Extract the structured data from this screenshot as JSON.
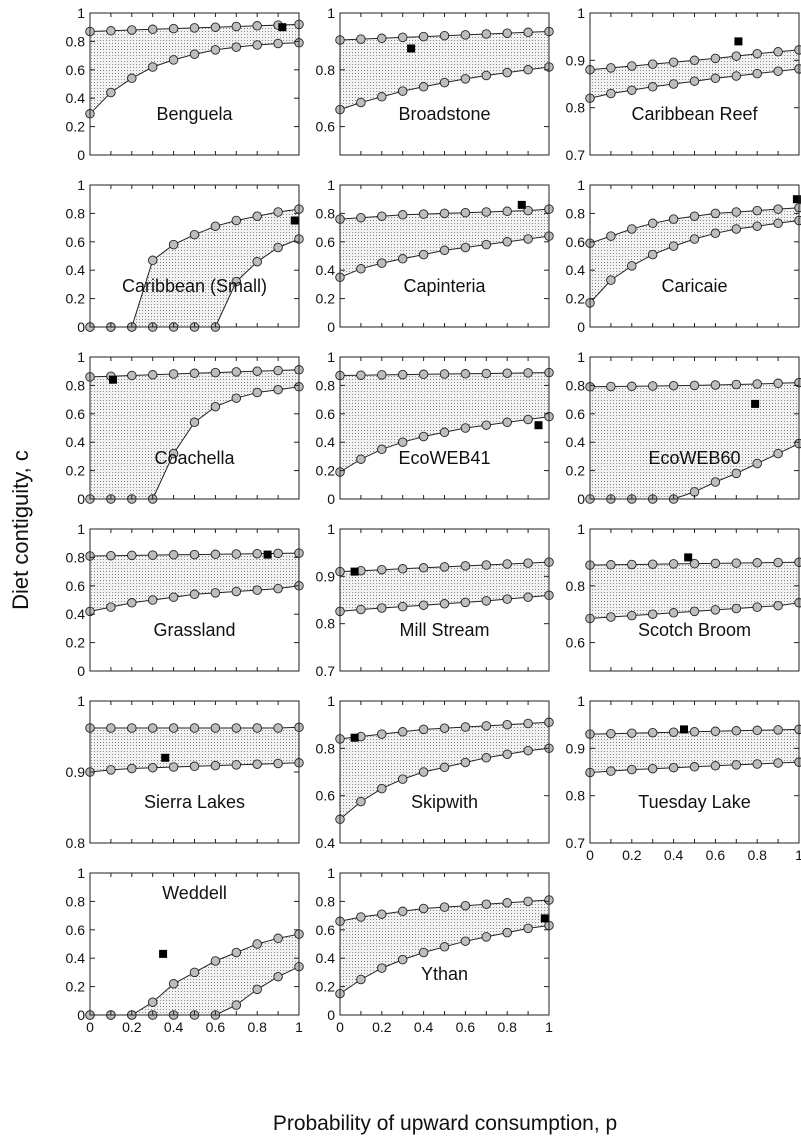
{
  "figure": {
    "ylabel": "Diet contiguity, c",
    "xlabel": "Probability of upward consumption, p"
  },
  "chart_data": [
    {
      "type": "area",
      "title": "Benguela",
      "ylim": [
        0,
        1
      ],
      "yticks": [
        "0",
        "0.2",
        "0.4",
        "0.6",
        "0.8",
        "1"
      ],
      "xlim": [
        0,
        1
      ],
      "x": [
        0,
        0.1,
        0.2,
        0.3,
        0.4,
        0.5,
        0.6,
        0.7,
        0.8,
        0.9,
        1
      ],
      "upper": [
        0.87,
        0.875,
        0.88,
        0.885,
        0.89,
        0.895,
        0.9,
        0.905,
        0.91,
        0.915,
        0.92
      ],
      "lower": [
        0.29,
        0.44,
        0.54,
        0.62,
        0.67,
        0.71,
        0.74,
        0.76,
        0.775,
        0.785,
        0.79
      ],
      "observed": [
        0.92,
        0.9
      ]
    },
    {
      "type": "area",
      "title": "Broadstone",
      "ylim": [
        0.5,
        1
      ],
      "yticks": [
        "0.6",
        "0.8",
        "1"
      ],
      "xlim": [
        0,
        1
      ],
      "x": [
        0,
        0.1,
        0.2,
        0.3,
        0.4,
        0.5,
        0.6,
        0.7,
        0.8,
        0.9,
        1
      ],
      "upper": [
        0.905,
        0.908,
        0.911,
        0.914,
        0.917,
        0.92,
        0.923,
        0.926,
        0.929,
        0.932,
        0.935
      ],
      "lower": [
        0.66,
        0.685,
        0.705,
        0.725,
        0.74,
        0.755,
        0.768,
        0.78,
        0.79,
        0.8,
        0.81
      ],
      "observed": [
        0.34,
        0.875
      ]
    },
    {
      "type": "area",
      "title": "Caribbean Reef",
      "ylim": [
        0.7,
        1
      ],
      "yticks": [
        "0.7",
        "0.8",
        "0.9",
        "1"
      ],
      "xlim": [
        0,
        1
      ],
      "x": [
        0,
        0.1,
        0.2,
        0.3,
        0.4,
        0.5,
        0.6,
        0.7,
        0.8,
        0.9,
        1
      ],
      "upper": [
        0.88,
        0.884,
        0.888,
        0.892,
        0.896,
        0.9,
        0.904,
        0.909,
        0.914,
        0.918,
        0.922
      ],
      "lower": [
        0.82,
        0.83,
        0.837,
        0.844,
        0.85,
        0.856,
        0.862,
        0.867,
        0.872,
        0.877,
        0.882
      ],
      "observed": [
        0.71,
        0.94
      ]
    },
    {
      "type": "area",
      "title": "Caribbean (Small)",
      "ylim": [
        0,
        1
      ],
      "yticks": [
        "0",
        "0.2",
        "0.4",
        "0.6",
        "0.8",
        "1"
      ],
      "xlim": [
        0,
        1
      ],
      "x": [
        0,
        0.1,
        0.2,
        0.3,
        0.4,
        0.5,
        0.6,
        0.7,
        0.8,
        0.9,
        1
      ],
      "upper": [
        0,
        0,
        0,
        0.47,
        0.58,
        0.65,
        0.71,
        0.75,
        0.78,
        0.81,
        0.83
      ],
      "lower": [
        0,
        0,
        0,
        0,
        0,
        0,
        0,
        0.32,
        0.46,
        0.56,
        0.62
      ],
      "observed": [
        0.98,
        0.75
      ]
    },
    {
      "type": "area",
      "title": "Capinteria",
      "ylim": [
        0,
        1
      ],
      "yticks": [
        "0",
        "0.2",
        "0.4",
        "0.6",
        "0.8",
        "1"
      ],
      "xlim": [
        0,
        1
      ],
      "x": [
        0,
        0.1,
        0.2,
        0.3,
        0.4,
        0.5,
        0.6,
        0.7,
        0.8,
        0.9,
        1
      ],
      "upper": [
        0.76,
        0.77,
        0.78,
        0.79,
        0.795,
        0.8,
        0.805,
        0.81,
        0.815,
        0.82,
        0.83
      ],
      "lower": [
        0.35,
        0.41,
        0.45,
        0.48,
        0.51,
        0.54,
        0.56,
        0.58,
        0.6,
        0.62,
        0.64
      ],
      "observed": [
        0.87,
        0.86
      ]
    },
    {
      "type": "area",
      "title": "Caricaie",
      "ylim": [
        0,
        1
      ],
      "yticks": [
        "0",
        "0.2",
        "0.4",
        "0.6",
        "0.8",
        "1"
      ],
      "xlim": [
        0,
        1
      ],
      "x": [
        0,
        0.1,
        0.2,
        0.3,
        0.4,
        0.5,
        0.6,
        0.7,
        0.8,
        0.9,
        1
      ],
      "upper": [
        0.59,
        0.64,
        0.69,
        0.73,
        0.76,
        0.78,
        0.8,
        0.81,
        0.82,
        0.83,
        0.84
      ],
      "lower": [
        0.17,
        0.33,
        0.43,
        0.51,
        0.57,
        0.62,
        0.66,
        0.69,
        0.71,
        0.73,
        0.75
      ],
      "observed": [
        0.99,
        0.9
      ]
    },
    {
      "type": "area",
      "title": "Coachella",
      "ylim": [
        0,
        1
      ],
      "yticks": [
        "0",
        "0.2",
        "0.4",
        "0.6",
        "0.8",
        "1"
      ],
      "xlim": [
        0,
        1
      ],
      "x": [
        0,
        0.1,
        0.2,
        0.3,
        0.4,
        0.5,
        0.6,
        0.7,
        0.8,
        0.9,
        1
      ],
      "upper": [
        0.86,
        0.865,
        0.87,
        0.875,
        0.88,
        0.885,
        0.89,
        0.895,
        0.9,
        0.905,
        0.91
      ],
      "lower": [
        0,
        0,
        0,
        0,
        0.32,
        0.54,
        0.65,
        0.71,
        0.75,
        0.77,
        0.79
      ],
      "observed": [
        0.11,
        0.84
      ]
    },
    {
      "type": "area",
      "title": "EcoWEB41",
      "ylim": [
        0,
        1
      ],
      "yticks": [
        "0",
        "0.2",
        "0.4",
        "0.6",
        "0.8",
        "1"
      ],
      "xlim": [
        0,
        1
      ],
      "x": [
        0,
        0.1,
        0.2,
        0.3,
        0.4,
        0.5,
        0.6,
        0.7,
        0.8,
        0.9,
        1
      ],
      "upper": [
        0.87,
        0.872,
        0.874,
        0.876,
        0.878,
        0.88,
        0.882,
        0.884,
        0.886,
        0.888,
        0.89
      ],
      "lower": [
        0.19,
        0.28,
        0.35,
        0.4,
        0.44,
        0.47,
        0.5,
        0.52,
        0.54,
        0.56,
        0.58
      ],
      "observed": [
        0.95,
        0.52
      ]
    },
    {
      "type": "area",
      "title": "EcoWEB60",
      "ylim": [
        0,
        1
      ],
      "yticks": [
        "0",
        "0.2",
        "0.4",
        "0.6",
        "0.8",
        "1"
      ],
      "xlim": [
        0,
        1
      ],
      "x": [
        0,
        0.1,
        0.2,
        0.3,
        0.4,
        0.5,
        0.6,
        0.7,
        0.8,
        0.9,
        1
      ],
      "upper": [
        0.79,
        0.792,
        0.794,
        0.796,
        0.798,
        0.8,
        0.803,
        0.806,
        0.81,
        0.815,
        0.82
      ],
      "lower": [
        0,
        0,
        0,
        0,
        0,
        0.05,
        0.12,
        0.18,
        0.25,
        0.32,
        0.39
      ],
      "observed": [
        0.79,
        0.67
      ]
    },
    {
      "type": "area",
      "title": "Grassland",
      "ylim": [
        0,
        1
      ],
      "yticks": [
        "0",
        "0.2",
        "0.4",
        "0.6",
        "0.8",
        "1"
      ],
      "xlim": [
        0,
        1
      ],
      "x": [
        0,
        0.1,
        0.2,
        0.3,
        0.4,
        0.5,
        0.6,
        0.7,
        0.8,
        0.9,
        1
      ],
      "upper": [
        0.81,
        0.812,
        0.814,
        0.816,
        0.818,
        0.82,
        0.822,
        0.824,
        0.826,
        0.828,
        0.83
      ],
      "lower": [
        0.42,
        0.45,
        0.48,
        0.5,
        0.52,
        0.54,
        0.55,
        0.56,
        0.57,
        0.58,
        0.6
      ],
      "observed": [
        0.85,
        0.82
      ]
    },
    {
      "type": "area",
      "title": "Mill Stream",
      "ylim": [
        0.7,
        1
      ],
      "yticks": [
        "0.7",
        "0.8",
        "0.9",
        "1"
      ],
      "xlim": [
        0,
        1
      ],
      "x": [
        0,
        0.1,
        0.2,
        0.3,
        0.4,
        0.5,
        0.6,
        0.7,
        0.8,
        0.9,
        1
      ],
      "upper": [
        0.91,
        0.912,
        0.914,
        0.916,
        0.918,
        0.92,
        0.922,
        0.924,
        0.926,
        0.928,
        0.93
      ],
      "lower": [
        0.826,
        0.83,
        0.833,
        0.836,
        0.839,
        0.842,
        0.845,
        0.848,
        0.852,
        0.856,
        0.86
      ],
      "observed": [
        0.07,
        0.91
      ]
    },
    {
      "type": "area",
      "title": "Scotch Broom",
      "ylim": [
        0.5,
        1
      ],
      "yticks": [
        "0.6",
        "0.8",
        "1"
      ],
      "xlim": [
        0,
        1
      ],
      "x": [
        0,
        0.1,
        0.2,
        0.3,
        0.4,
        0.5,
        0.6,
        0.7,
        0.8,
        0.9,
        1
      ],
      "upper": [
        0.873,
        0.874,
        0.875,
        0.876,
        0.877,
        0.878,
        0.879,
        0.88,
        0.881,
        0.882,
        0.883
      ],
      "lower": [
        0.685,
        0.69,
        0.695,
        0.7,
        0.705,
        0.71,
        0.715,
        0.72,
        0.725,
        0.73,
        0.74
      ],
      "observed": [
        0.47,
        0.9
      ]
    },
    {
      "type": "area",
      "title": "Sierra Lakes",
      "ylim": [
        0.8,
        1
      ],
      "yticks": [
        "0.8",
        "0.9",
        "1"
      ],
      "xlim": [
        0,
        1
      ],
      "x": [
        0,
        0.1,
        0.2,
        0.3,
        0.4,
        0.5,
        0.6,
        0.7,
        0.8,
        0.9,
        1
      ],
      "upper": [
        0.962,
        0.962,
        0.962,
        0.962,
        0.962,
        0.962,
        0.962,
        0.962,
        0.962,
        0.962,
        0.963
      ],
      "lower": [
        0.9,
        0.903,
        0.905,
        0.906,
        0.907,
        0.908,
        0.909,
        0.91,
        0.911,
        0.912,
        0.913
      ],
      "observed": [
        0.36,
        0.92
      ]
    },
    {
      "type": "area",
      "title": "Skipwith",
      "ylim": [
        0.4,
        1
      ],
      "yticks": [
        "0.4",
        "0.6",
        "0.8",
        "1"
      ],
      "xlim": [
        0,
        1
      ],
      "x": [
        0,
        0.1,
        0.2,
        0.3,
        0.4,
        0.5,
        0.6,
        0.7,
        0.8,
        0.9,
        1
      ],
      "upper": [
        0.84,
        0.85,
        0.86,
        0.87,
        0.88,
        0.885,
        0.89,
        0.895,
        0.9,
        0.905,
        0.91
      ],
      "lower": [
        0.5,
        0.575,
        0.63,
        0.67,
        0.7,
        0.72,
        0.74,
        0.76,
        0.775,
        0.79,
        0.8
      ],
      "observed": [
        0.07,
        0.845
      ]
    },
    {
      "type": "area",
      "title": "Tuesday Lake",
      "ylim": [
        0.7,
        1
      ],
      "yticks": [
        "0.7",
        "0.8",
        "0.9",
        "1"
      ],
      "xlim": [
        0,
        1
      ],
      "xticks": [
        "0",
        "0.2",
        "0.4",
        "0.6",
        "0.8",
        "1"
      ],
      "x": [
        0,
        0.1,
        0.2,
        0.3,
        0.4,
        0.5,
        0.6,
        0.7,
        0.8,
        0.9,
        1
      ],
      "upper": [
        0.93,
        0.931,
        0.932,
        0.933,
        0.934,
        0.935,
        0.936,
        0.937,
        0.938,
        0.939,
        0.94
      ],
      "lower": [
        0.849,
        0.852,
        0.855,
        0.857,
        0.859,
        0.861,
        0.863,
        0.865,
        0.867,
        0.869,
        0.871
      ],
      "observed": [
        0.45,
        0.94
      ]
    },
    {
      "type": "area",
      "title": "Weddell",
      "ylim": [
        0,
        1
      ],
      "yticks": [
        "0",
        "0.2",
        "0.4",
        "0.6",
        "0.8",
        "1"
      ],
      "xlim": [
        0,
        1
      ],
      "xticks": [
        "0",
        "0.2",
        "0.4",
        "0.6",
        "0.8",
        "1"
      ],
      "x": [
        0,
        0.1,
        0.2,
        0.3,
        0.4,
        0.5,
        0.6,
        0.7,
        0.8,
        0.9,
        1
      ],
      "upper": [
        0,
        0,
        0,
        0.09,
        0.22,
        0.3,
        0.38,
        0.44,
        0.5,
        0.54,
        0.57
      ],
      "lower": [
        0,
        0,
        0,
        0,
        0,
        0,
        0,
        0.07,
        0.18,
        0.27,
        0.34
      ],
      "observed": [
        0.35,
        0.43
      ]
    },
    {
      "type": "area",
      "title": "Ythan",
      "ylim": [
        0,
        1
      ],
      "yticks": [
        "0",
        "0.2",
        "0.4",
        "0.6",
        "0.8",
        "1"
      ],
      "xlim": [
        0,
        1
      ],
      "xticks": [
        "0",
        "0.2",
        "0.4",
        "0.6",
        "0.8",
        "1"
      ],
      "x": [
        0,
        0.1,
        0.2,
        0.3,
        0.4,
        0.5,
        0.6,
        0.7,
        0.8,
        0.9,
        1
      ],
      "upper": [
        0.66,
        0.69,
        0.71,
        0.73,
        0.75,
        0.76,
        0.77,
        0.78,
        0.79,
        0.8,
        0.81
      ],
      "lower": [
        0.15,
        0.25,
        0.33,
        0.39,
        0.44,
        0.48,
        0.52,
        0.55,
        0.58,
        0.61,
        0.63
      ],
      "observed": [
        0.98,
        0.68
      ]
    }
  ]
}
